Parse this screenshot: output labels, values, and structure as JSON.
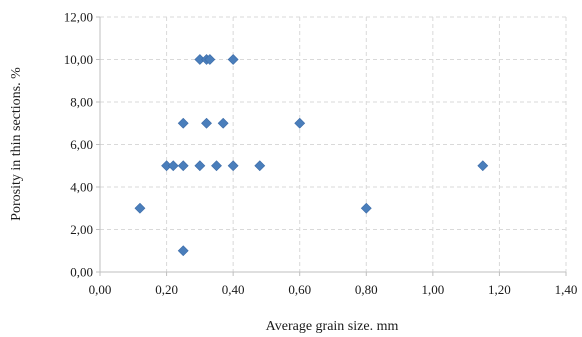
{
  "chart_data": {
    "type": "scatter",
    "title": "",
    "xlabel": "Average grain size. mm",
    "ylabel": "Porosity in thin sections. %",
    "xlim": [
      0,
      1.4
    ],
    "ylim": [
      0,
      12
    ],
    "x_ticks": [
      0,
      0.2,
      0.4,
      0.6,
      0.8,
      1.0,
      1.2,
      1.4
    ],
    "y_ticks": [
      0,
      2,
      4,
      6,
      8,
      10,
      12
    ],
    "x_tick_labels": [
      "0,00",
      "0,20",
      "0,40",
      "0,60",
      "0,80",
      "1,00",
      "1,20",
      "1,40"
    ],
    "y_tick_labels": [
      "0,00",
      "2,00",
      "4,00",
      "6,00",
      "8,00",
      "10,00",
      "12,00"
    ],
    "grid": true,
    "legend": "none",
    "marker": "diamond",
    "color": "#4a7ebb",
    "series": [
      {
        "points": [
          {
            "x": 0.12,
            "y": 3
          },
          {
            "x": 0.2,
            "y": 5
          },
          {
            "x": 0.22,
            "y": 5
          },
          {
            "x": 0.25,
            "y": 5
          },
          {
            "x": 0.25,
            "y": 7
          },
          {
            "x": 0.25,
            "y": 1
          },
          {
            "x": 0.3,
            "y": 10
          },
          {
            "x": 0.3,
            "y": 5
          },
          {
            "x": 0.32,
            "y": 10
          },
          {
            "x": 0.33,
            "y": 10
          },
          {
            "x": 0.32,
            "y": 7
          },
          {
            "x": 0.35,
            "y": 5
          },
          {
            "x": 0.37,
            "y": 7
          },
          {
            "x": 0.4,
            "y": 10
          },
          {
            "x": 0.4,
            "y": 5
          },
          {
            "x": 0.48,
            "y": 5
          },
          {
            "x": 0.6,
            "y": 7
          },
          {
            "x": 0.8,
            "y": 3
          },
          {
            "x": 1.15,
            "y": 5
          }
        ]
      }
    ]
  }
}
